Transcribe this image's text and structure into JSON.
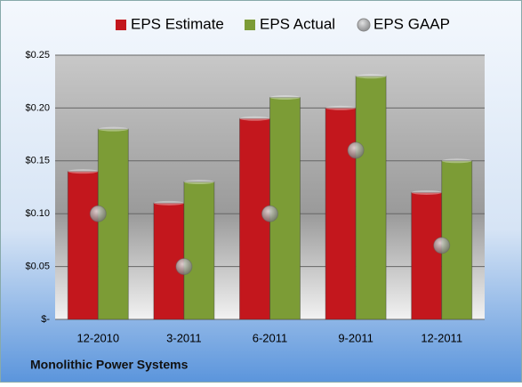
{
  "chart_data": {
    "type": "bar",
    "categories": [
      "12-2010",
      "3-2011",
      "6-2011",
      "9-2011",
      "12-2011"
    ],
    "series": [
      {
        "name": "EPS Estimate",
        "color": "#c3171d",
        "mark": "bar",
        "values": [
          0.14,
          0.11,
          0.19,
          0.2,
          0.12
        ]
      },
      {
        "name": "EPS Actual",
        "color": "#7c9c36",
        "mark": "bar",
        "values": [
          0.18,
          0.13,
          0.21,
          0.23,
          0.15
        ]
      },
      {
        "name": "EPS GAAP",
        "color": "#9a9a9a",
        "mark": "circle",
        "values": [
          0.1,
          0.05,
          0.1,
          0.16,
          0.07
        ]
      }
    ],
    "ylim": [
      0,
      0.25
    ],
    "yticks": [
      {
        "value": 0,
        "label": "$-"
      },
      {
        "value": 0.05,
        "label": "$0.05"
      },
      {
        "value": 0.1,
        "label": "$0.10"
      },
      {
        "value": 0.15,
        "label": "$0.15"
      },
      {
        "value": 0.2,
        "label": "$0.20"
      },
      {
        "value": 0.25,
        "label": "$0.25"
      }
    ],
    "grid": true,
    "legend": "top",
    "footer": "Monolithic Power Systems"
  }
}
